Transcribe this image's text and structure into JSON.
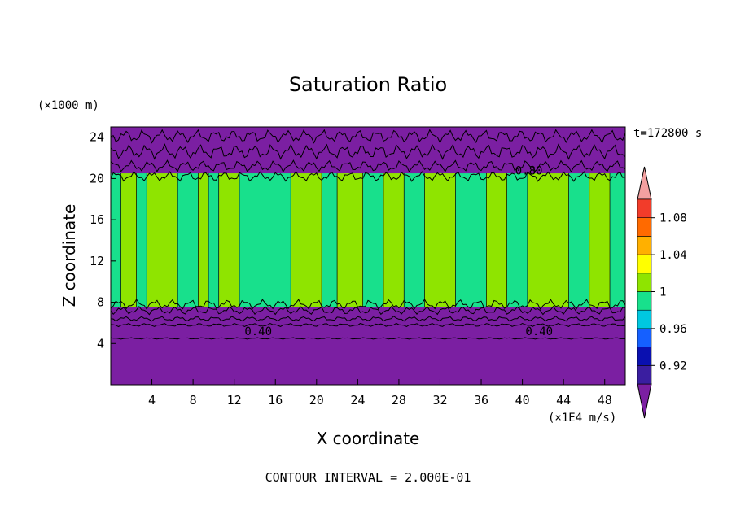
{
  "chart_data": {
    "type": "heatmap",
    "title": "Saturation Ratio",
    "xlabel": "X coordinate",
    "ylabel": "Z coordinate",
    "x_unit": "(×1E4 m/s)",
    "y_unit": "(×1000 m)",
    "time_label": "t=172800 s",
    "footer": "CONTOUR INTERVAL = 2.000E-01",
    "xlim": [
      0,
      50
    ],
    "ylim": [
      0,
      25
    ],
    "x_ticks": [
      4,
      8,
      12,
      16,
      20,
      24,
      28,
      32,
      36,
      40,
      44,
      48
    ],
    "y_ticks": [
      4,
      8,
      12,
      16,
      20,
      24
    ],
    "contour_labels": [
      {
        "text": "0.40",
        "x": 13.0,
        "y": 5.2
      },
      {
        "text": "0.40",
        "x": 40.3,
        "y": 5.2
      },
      {
        "text": "0.80",
        "x": 39.3,
        "y": 20.8
      }
    ],
    "layers": {
      "lower_dry_top": 7.5,
      "moist_band_top": 20.5,
      "domain_top": 25
    },
    "moist_regions": [
      {
        "x0": 0.0,
        "x1": 1.0,
        "level": "0.98-1"
      },
      {
        "x0": 1.0,
        "x1": 2.5,
        "level": "1-1.02"
      },
      {
        "x0": 2.5,
        "x1": 3.5,
        "level": "0.98-1"
      },
      {
        "x0": 3.5,
        "x1": 6.5,
        "level": "1-1.02"
      },
      {
        "x0": 6.5,
        "x1": 8.5,
        "level": "0.98-1"
      },
      {
        "x0": 8.5,
        "x1": 9.5,
        "level": "1-1.02"
      },
      {
        "x0": 9.5,
        "x1": 10.5,
        "level": "0.98-1"
      },
      {
        "x0": 10.5,
        "x1": 12.5,
        "level": "1-1.02"
      },
      {
        "x0": 12.5,
        "x1": 17.5,
        "level": "0.98-1"
      },
      {
        "x0": 17.5,
        "x1": 20.5,
        "level": "1-1.02"
      },
      {
        "x0": 20.5,
        "x1": 22.0,
        "level": "0.98-1"
      },
      {
        "x0": 22.0,
        "x1": 24.5,
        "level": "1-1.02"
      },
      {
        "x0": 24.5,
        "x1": 26.5,
        "level": "0.98-1"
      },
      {
        "x0": 26.5,
        "x1": 28.5,
        "level": "1-1.02"
      },
      {
        "x0": 28.5,
        "x1": 30.5,
        "level": "0.98-1"
      },
      {
        "x0": 30.5,
        "x1": 33.5,
        "level": "1-1.02"
      },
      {
        "x0": 33.5,
        "x1": 36.5,
        "level": "0.98-1"
      },
      {
        "x0": 36.5,
        "x1": 38.5,
        "level": "1-1.02"
      },
      {
        "x0": 38.5,
        "x1": 40.5,
        "level": "0.98-1"
      },
      {
        "x0": 40.5,
        "x1": 44.5,
        "level": "1-1.02"
      },
      {
        "x0": 44.5,
        "x1": 46.5,
        "level": "0.98-1"
      },
      {
        "x0": 46.5,
        "x1": 48.5,
        "level": "1-1.02"
      },
      {
        "x0": 48.5,
        "x1": 50.0,
        "level": "0.98-1"
      }
    ],
    "colorbar": {
      "bins": [
        {
          "range": "<0.90",
          "color": "#7b1fa2"
        },
        {
          "range": "0.90-0.92",
          "color": "#3a1ea0"
        },
        {
          "range": "0.92-0.94",
          "color": "#0a10b0"
        },
        {
          "range": "0.94-0.96",
          "color": "#1560ff"
        },
        {
          "range": "0.96-0.98",
          "color": "#00c8e0"
        },
        {
          "range": "0.98-1",
          "color": "#18e08c"
        },
        {
          "range": "1-1.02",
          "color": "#8fe400"
        },
        {
          "range": "1.02-1.04",
          "color": "#ffff00"
        },
        {
          "range": "1.04-1.06",
          "color": "#ffb000"
        },
        {
          "range": "1.06-1.08",
          "color": "#ff6a00"
        },
        {
          "range": "1.08-1.10",
          "color": "#f23c2a"
        },
        {
          "range": ">1.10",
          "color": "#f3a0a0"
        }
      ],
      "labels": [
        "0.92",
        "0.96",
        "1",
        "1.04",
        "1.08"
      ]
    }
  }
}
